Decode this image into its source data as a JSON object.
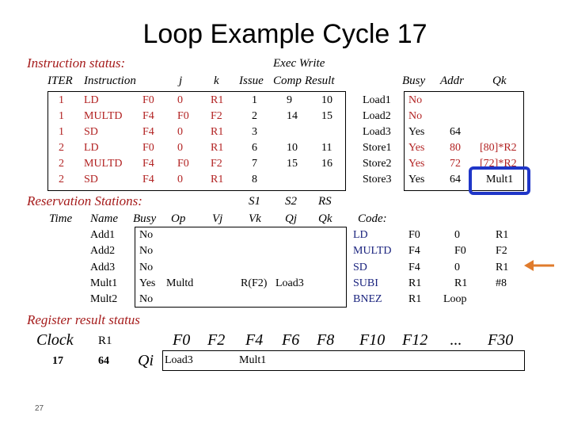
{
  "title": "Loop Example Cycle 17",
  "instruction_status": {
    "section_label": "Instruction status:",
    "exec_write_label": "Exec Write",
    "headers": {
      "iter": "ITER",
      "instruction": "Instruction",
      "j": "j",
      "k": "k",
      "issue": "Issue",
      "comp": "Comp",
      "result": "Result"
    },
    "rows": [
      {
        "iter": "1",
        "op": "LD",
        "dst": "F0",
        "j": "0",
        "k": "R1",
        "issue": "1",
        "comp": "9",
        "result": "10"
      },
      {
        "iter": "1",
        "op": "MULTD",
        "dst": "F4",
        "j": "F0",
        "k": "F2",
        "issue": "2",
        "comp": "14",
        "result": "15"
      },
      {
        "iter": "1",
        "op": "SD",
        "dst": "F4",
        "j": "0",
        "k": "R1",
        "issue": "3",
        "comp": "",
        "result": ""
      },
      {
        "iter": "2",
        "op": "LD",
        "dst": "F0",
        "j": "0",
        "k": "R1",
        "issue": "6",
        "comp": "10",
        "result": "11"
      },
      {
        "iter": "2",
        "op": "MULTD",
        "dst": "F4",
        "j": "F0",
        "k": "F2",
        "issue": "7",
        "comp": "15",
        "result": "16"
      },
      {
        "iter": "2",
        "op": "SD",
        "dst": "F4",
        "j": "0",
        "k": "R1",
        "issue": "8",
        "comp": "",
        "result": ""
      }
    ]
  },
  "load_store": {
    "headers": {
      "busy": "Busy",
      "addr": "Addr",
      "qk": "Qk"
    },
    "rows": [
      {
        "name": "Load1",
        "busy": "No",
        "addr": "",
        "qk": ""
      },
      {
        "name": "Load2",
        "busy": "No",
        "addr": "",
        "qk": ""
      },
      {
        "name": "Load3",
        "busy": "Yes",
        "addr": "64",
        "qk": ""
      },
      {
        "name": "Store1",
        "busy": "Yes",
        "addr": "80",
        "qk": "[80]*R2"
      },
      {
        "name": "Store2",
        "busy": "Yes",
        "addr": "72",
        "qk": "[72]*R2"
      },
      {
        "name": "Store3",
        "busy": "Yes",
        "addr": "64",
        "qk": "Mult1"
      }
    ]
  },
  "reservation_stations": {
    "section_label": "Reservation Stations:",
    "headers": {
      "s1": "S1",
      "s2": "S2",
      "rs": "RS",
      "time": "Time",
      "name": "Name",
      "busy": "Busy",
      "op": "Op",
      "vj": "Vj",
      "vk": "Vk",
      "qj": "Qj",
      "qk": "Qk"
    },
    "rows": [
      {
        "time": "",
        "name": "Add1",
        "busy": "No",
        "op": "",
        "vj": "",
        "vk": "",
        "qj": "",
        "qk": ""
      },
      {
        "time": "",
        "name": "Add2",
        "busy": "No",
        "op": "",
        "vj": "",
        "vk": "",
        "qj": "",
        "qk": ""
      },
      {
        "time": "",
        "name": "Add3",
        "busy": "No",
        "op": "",
        "vj": "",
        "vk": "",
        "qj": "",
        "qk": ""
      },
      {
        "time": "",
        "name": "Mult1",
        "busy": "Yes",
        "op": "Multd",
        "vj": "",
        "vk": "R(F2)",
        "qj": "Load3",
        "qk": ""
      },
      {
        "time": "",
        "name": "Mult2",
        "busy": "No",
        "op": "",
        "vj": "",
        "vk": "",
        "qj": "",
        "qk": ""
      }
    ]
  },
  "code": {
    "label": "Code:",
    "lines": [
      {
        "op": "LD",
        "a": "F0",
        "b": "0",
        "c": "R1"
      },
      {
        "op": "MULTD",
        "a": "F4",
        "b": "F0",
        "c": "F2"
      },
      {
        "op": "SD",
        "a": "F4",
        "b": "0",
        "c": "R1"
      },
      {
        "op": "SUBI",
        "a": "R1",
        "b": "R1",
        "c": "#8"
      },
      {
        "op": "BNEZ",
        "a": "R1",
        "b": "Loop",
        "c": ""
      }
    ]
  },
  "register_result": {
    "section_label": "Register result status",
    "clock_label": "Clock",
    "r1_label": "R1",
    "clock_value": "17",
    "r1_value": "64",
    "qi_label": "Qi",
    "registers": [
      "F0",
      "F2",
      "F4",
      "F6",
      "F8",
      "F10",
      "F12",
      "...",
      "F30"
    ],
    "qi_values": [
      "Load3",
      "",
      "Mult1",
      "",
      "",
      "",
      "",
      "",
      ""
    ]
  },
  "page_number": "27",
  "colors": {
    "section_red": "#a51b1b",
    "cell_red": "#b22222",
    "highlight_blue": "#1f36c8",
    "arrow_orange": "#e07b2c"
  }
}
